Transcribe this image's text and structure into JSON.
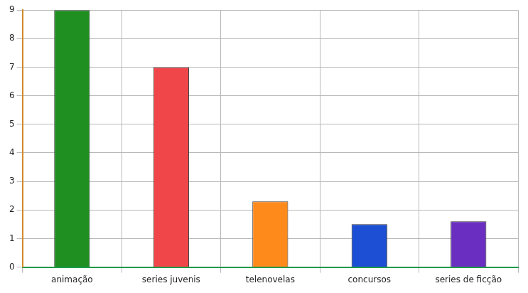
{
  "chart_data": {
    "type": "bar",
    "categories": [
      "animação",
      "series juvenis",
      "telenovelas",
      "concursos",
      "series de ficção"
    ],
    "values": [
      9,
      7,
      2.3,
      1.5,
      1.6
    ],
    "colors": [
      "#1f8f22",
      "#f0464a",
      "#ff8a1c",
      "#1d4fd4",
      "#6a2fc0"
    ],
    "ylim": [
      0,
      9
    ],
    "yticks": [
      0,
      1,
      2,
      3,
      4,
      5,
      6,
      7,
      8,
      9
    ],
    "grid": true
  }
}
